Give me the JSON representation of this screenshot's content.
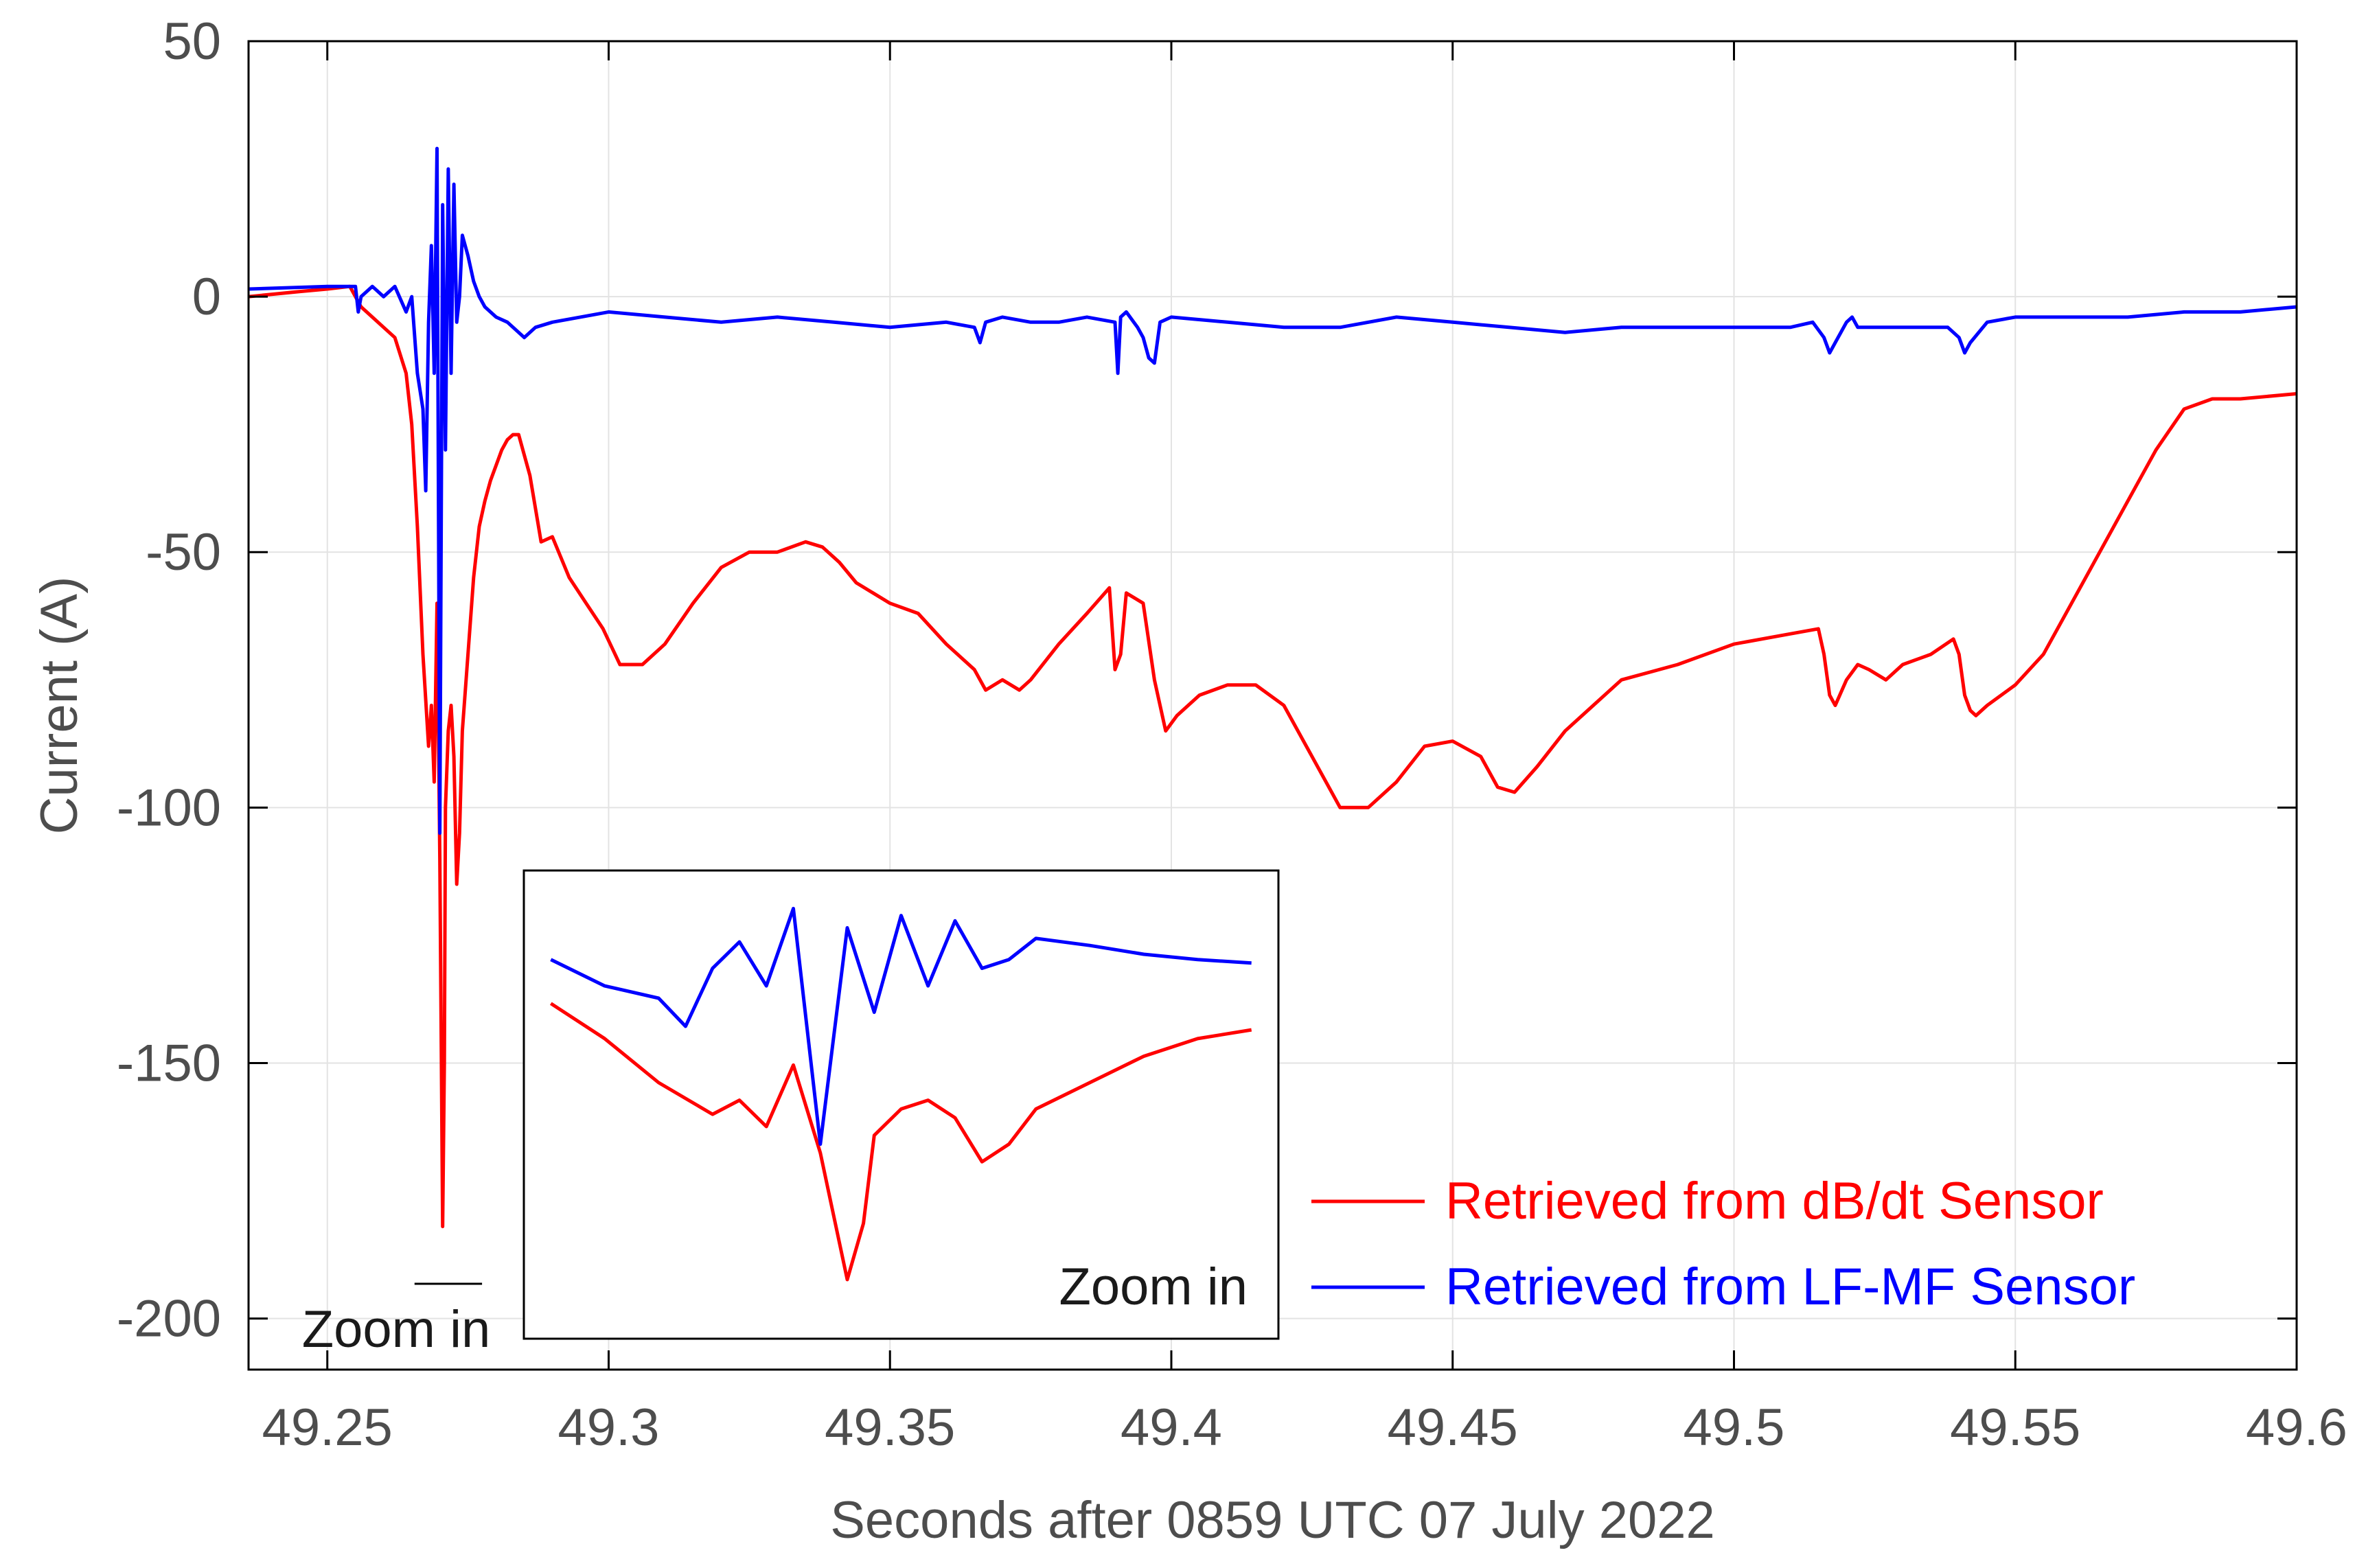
{
  "chart_data": {
    "type": "line",
    "title": "",
    "xlabel": "Seconds after 0859 UTC 07 July 2022",
    "ylabel": "Current (A)",
    "xlim": [
      49.236,
      49.6
    ],
    "ylim": [
      -210,
      50
    ],
    "xticks": [
      49.25,
      49.3,
      49.35,
      49.4,
      49.45,
      49.5,
      49.55,
      49.6
    ],
    "xtick_labels": [
      "49.25",
      "49.3",
      "49.35",
      "49.4",
      "49.45",
      "49.5",
      "49.55",
      "49.6"
    ],
    "yticks": [
      50,
      0,
      -50,
      -100,
      -150,
      -200
    ],
    "ytick_labels": [
      "50",
      "0",
      "-50",
      "-100",
      "-150",
      "-200"
    ],
    "grid": true,
    "legend_position": "bottom-right",
    "series": [
      {
        "name": "Retrieved from dB/dt Sensor",
        "color": "#ff0000",
        "x": [
          49.236,
          49.245,
          49.25,
          49.254,
          49.256,
          49.258,
          49.26,
          49.262,
          49.264,
          49.265,
          49.266,
          49.267,
          49.268,
          49.2685,
          49.269,
          49.2695,
          49.27,
          49.2705,
          49.2708,
          49.271,
          49.2715,
          49.272,
          49.2725,
          49.273,
          49.2735,
          49.274,
          49.275,
          49.276,
          49.277,
          49.278,
          49.279,
          49.28,
          49.281,
          49.282,
          49.283,
          49.284,
          49.286,
          49.288,
          49.29,
          49.293,
          49.296,
          49.299,
          49.302,
          49.306,
          49.31,
          49.315,
          49.32,
          49.325,
          49.33,
          49.335,
          49.338,
          49.341,
          49.344,
          49.347,
          49.35,
          49.355,
          49.36,
          49.365,
          49.367,
          49.37,
          49.373,
          49.375,
          49.38,
          49.385,
          49.389,
          49.39,
          49.391,
          49.392,
          49.395,
          49.397,
          49.399,
          49.401,
          49.405,
          49.41,
          49.415,
          49.42,
          49.425,
          49.43,
          49.435,
          49.44,
          49.445,
          49.45,
          49.455,
          49.458,
          49.461,
          49.465,
          49.47,
          49.475,
          49.48,
          49.49,
          49.5,
          49.51,
          49.515,
          49.516,
          49.517,
          49.518,
          49.52,
          49.522,
          49.524,
          49.527,
          49.53,
          49.535,
          49.539,
          49.54,
          49.541,
          49.542,
          49.543,
          49.545,
          49.55,
          49.555,
          49.56,
          49.565,
          49.57,
          49.575,
          49.58,
          49.585,
          49.59,
          49.6
        ],
        "values": [
          0,
          1,
          1.5,
          2,
          -2,
          -4,
          -6,
          -8,
          -15,
          -25,
          -45,
          -70,
          -88,
          -80,
          -95,
          -60,
          -110,
          -182,
          -150,
          -100,
          -85,
          -80,
          -90,
          -115,
          -105,
          -85,
          -70,
          -55,
          -45,
          -40,
          -36,
          -33,
          -30,
          -28,
          -27,
          -27,
          -35,
          -48,
          -47,
          -55,
          -60,
          -65,
          -72,
          -72,
          -68,
          -60,
          -53,
          -50,
          -50,
          -48,
          -49,
          -52,
          -56,
          -58,
          -60,
          -62,
          -68,
          -73,
          -77,
          -75,
          -77,
          -75,
          -68,
          -62,
          -57,
          -73,
          -70,
          -58,
          -60,
          -75,
          -85,
          -82,
          -78,
          -76,
          -76,
          -80,
          -90,
          -100,
          -100,
          -95,
          -88,
          -87,
          -90,
          -96,
          -97,
          -92,
          -85,
          -80,
          -75,
          -72,
          -68,
          -66,
          -65,
          -70,
          -78,
          -80,
          -75,
          -72,
          -73,
          -75,
          -72,
          -70,
          -67,
          -70,
          -78,
          -81,
          -82,
          -80,
          -76,
          -70,
          -60,
          -50,
          -40,
          -30,
          -22,
          -20,
          -20,
          -19
        ]
      },
      {
        "name": "Retrieved from LF-MF Sensor",
        "color": "#0000ff",
        "x": [
          49.236,
          49.25,
          49.255,
          49.2555,
          49.256,
          49.258,
          49.26,
          49.262,
          49.264,
          49.265,
          49.266,
          49.267,
          49.2675,
          49.268,
          49.2685,
          49.269,
          49.2695,
          49.27,
          49.2705,
          49.271,
          49.2715,
          49.272,
          49.2725,
          49.273,
          49.2735,
          49.274,
          49.275,
          49.276,
          49.277,
          49.278,
          49.28,
          49.282,
          49.284,
          49.285,
          49.287,
          49.29,
          49.3,
          49.31,
          49.32,
          49.33,
          49.34,
          49.35,
          49.36,
          49.365,
          49.366,
          49.367,
          49.37,
          49.375,
          49.38,
          49.385,
          49.39,
          49.3905,
          49.391,
          49.392,
          49.394,
          49.395,
          49.396,
          49.397,
          49.398,
          49.4,
          49.41,
          49.42,
          49.43,
          49.44,
          49.45,
          49.46,
          49.47,
          49.48,
          49.49,
          49.5,
          49.51,
          49.514,
          49.516,
          49.517,
          49.518,
          49.52,
          49.521,
          49.522,
          49.525,
          49.53,
          49.535,
          49.538,
          49.54,
          49.541,
          49.542,
          49.545,
          49.55,
          49.56,
          49.57,
          49.58,
          49.59,
          49.6
        ],
        "values": [
          1.5,
          2,
          2,
          -3,
          0,
          2,
          0,
          2,
          -3,
          0,
          -15,
          -22,
          -38,
          -5,
          10,
          -15,
          29,
          -105,
          18,
          -30,
          25,
          -15,
          22,
          -5,
          0,
          12,
          8,
          3,
          0,
          -2,
          -4,
          -5,
          -7,
          -8,
          -6,
          -5,
          -3,
          -4,
          -5,
          -4,
          -5,
          -6,
          -5,
          -6,
          -9,
          -5,
          -4,
          -5,
          -5,
          -4,
          -5,
          -15,
          -4,
          -3,
          -6,
          -8,
          -12,
          -13,
          -5,
          -4,
          -5,
          -6,
          -6,
          -4,
          -5,
          -6,
          -7,
          -6,
          -6,
          -6,
          -6,
          -5,
          -8,
          -11,
          -9,
          -5,
          -4,
          -6,
          -6,
          -6,
          -6,
          -6,
          -8,
          -11,
          -9,
          -5,
          -4,
          -4,
          -4,
          -3,
          -3,
          -2
        ]
      }
    ],
    "inset": {
      "label": "Zoom in",
      "xlim": [
        49.2645,
        49.2785
      ],
      "series_names": [
        "Retrieved from dB/dt Sensor",
        "Retrieved from LF-MF Sensor"
      ]
    },
    "annotations": [
      {
        "text": "Zoom in",
        "near": "x-axis, under the main peak",
        "x_range": [
          49.2655,
          49.2775
        ]
      }
    ]
  }
}
